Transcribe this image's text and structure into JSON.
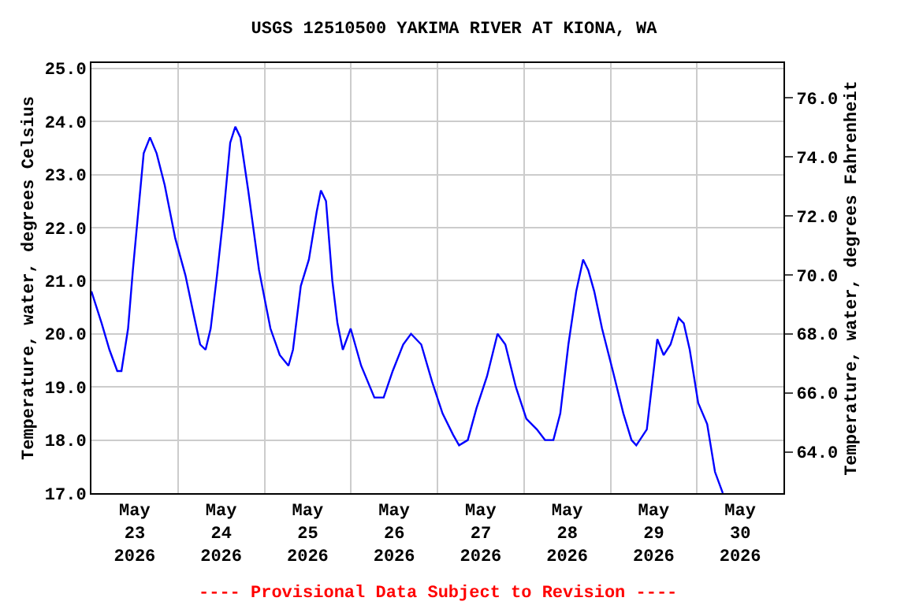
{
  "chart_data": {
    "type": "line",
    "title": "USGS 12510500 YAKIMA RIVER AT KIONA, WA",
    "ylabel": "Temperature, water, degrees Celsius",
    "y2label": "Temperature, water, degrees Fahrenheit",
    "annotations": [
      "---- Provisional Data Subject to Revision ----"
    ],
    "x": [
      "2026-05-23T00:00",
      "2026-05-23T02:50",
      "2026-05-23T05:00",
      "2026-05-23T07:10",
      "2026-05-23T08:20",
      "2026-05-23T10:10",
      "2026-05-23T11:30",
      "2026-05-23T13:00",
      "2026-05-23T14:30",
      "2026-05-23T16:15",
      "2026-05-23T18:05",
      "2026-05-23T20:20",
      "2026-05-23T23:15",
      "2026-05-24T02:05",
      "2026-05-24T04:15",
      "2026-05-24T06:10",
      "2026-05-24T07:40",
      "2026-05-24T09:05",
      "2026-05-24T10:50",
      "2026-05-24T12:35",
      "2026-05-24T14:30",
      "2026-05-24T15:55",
      "2026-05-24T17:20",
      "2026-05-24T19:30",
      "2026-05-24T22:30",
      "2026-05-25T01:40",
      "2026-05-25T04:15",
      "2026-05-25T06:40",
      "2026-05-25T07:55",
      "2026-05-25T10:05",
      "2026-05-25T12:20",
      "2026-05-25T14:30",
      "2026-05-25T15:40",
      "2026-05-25T17:05",
      "2026-05-25T18:50",
      "2026-05-25T20:15",
      "2026-05-25T21:45",
      "2026-05-25T23:55",
      "2026-05-26T02:50",
      "2026-05-26T06:30",
      "2026-05-26T09:05",
      "2026-05-26T11:35",
      "2026-05-26T14:30",
      "2026-05-26T16:40",
      "2026-05-26T19:30",
      "2026-05-26T22:30",
      "2026-05-27T01:25",
      "2026-05-27T04:20",
      "2026-05-27T06:00",
      "2026-05-27T08:25",
      "2026-05-27T10:50",
      "2026-05-27T13:45",
      "2026-05-27T16:40",
      "2026-05-27T18:50",
      "2026-05-27T21:45",
      "2026-05-28T00:40",
      "2026-05-28T03:35",
      "2026-05-28T05:50",
      "2026-05-28T08:10",
      "2026-05-28T10:05",
      "2026-05-28T12:20",
      "2026-05-28T14:30",
      "2026-05-28T16:25",
      "2026-05-28T17:50",
      "2026-05-28T19:30",
      "2026-05-28T21:40",
      "2026-05-29T00:40",
      "2026-05-29T03:35",
      "2026-05-29T05:50",
      "2026-05-29T07:10",
      "2026-05-29T10:05",
      "2026-05-29T13:00",
      "2026-05-29T14:45",
      "2026-05-29T16:40",
      "2026-05-29T18:55",
      "2026-05-29T20:20",
      "2026-05-29T22:00",
      "2026-05-30T00:20",
      "2026-05-30T02:50",
      "2026-05-30T05:00",
      "2026-05-30T07:10"
    ],
    "series": [
      {
        "color": "#0000ff",
        "values": [
          20.8,
          20.2,
          19.7,
          19.3,
          19.3,
          20.1,
          21.2,
          22.3,
          23.4,
          23.7,
          23.4,
          22.8,
          21.8,
          21.1,
          20.4,
          19.8,
          19.7,
          20.1,
          21.1,
          22.2,
          23.6,
          23.9,
          23.7,
          22.7,
          21.2,
          20.1,
          19.6,
          19.4,
          19.7,
          20.9,
          21.4,
          22.3,
          22.7,
          22.5,
          21.0,
          20.2,
          19.7,
          20.1,
          19.4,
          18.8,
          18.8,
          19.3,
          19.8,
          20.0,
          19.8,
          19.1,
          18.5,
          18.1,
          17.9,
          18.0,
          18.6,
          19.2,
          20.0,
          19.8,
          19.0,
          18.4,
          18.2,
          18.0,
          18.0,
          18.5,
          19.8,
          20.8,
          21.4,
          21.2,
          20.8,
          20.1,
          19.3,
          18.5,
          18.0,
          17.9,
          18.2,
          19.9,
          19.6,
          19.8,
          20.3,
          20.2,
          19.7,
          18.7,
          18.3,
          17.4,
          17.0
        ]
      }
    ],
    "xlim": [
      "2026-05-23T00:00",
      "2026-05-31T00:00"
    ],
    "xticks": [
      {
        "value": "2026-05-23T12:00",
        "label": "May\n23\n2026"
      },
      {
        "value": "2026-05-24T12:00",
        "label": "May\n24\n2026"
      },
      {
        "value": "2026-05-25T12:00",
        "label": "May\n25\n2026"
      },
      {
        "value": "2026-05-26T12:00",
        "label": "May\n26\n2026"
      },
      {
        "value": "2026-05-27T12:00",
        "label": "May\n27\n2026"
      },
      {
        "value": "2026-05-28T12:00",
        "label": "May\n28\n2026"
      },
      {
        "value": "2026-05-29T12:00",
        "label": "May\n29\n2026"
      },
      {
        "value": "2026-05-30T12:00",
        "label": "May\n30\n2026"
      },
      {
        "value": "2026-05-24T00:00",
        "label": null
      },
      {
        "value": "2026-05-25T00:00",
        "label": null
      },
      {
        "value": "2026-05-26T00:00",
        "label": null
      },
      {
        "value": "2026-05-27T00:00",
        "label": null
      },
      {
        "value": "2026-05-28T00:00",
        "label": null
      },
      {
        "value": "2026-05-29T00:00",
        "label": null
      },
      {
        "value": "2026-05-30T00:00",
        "label": null
      }
    ],
    "ylim": [
      17.0,
      25.1
    ],
    "yticks": [
      {
        "value": 17,
        "label": "17.0"
      },
      {
        "value": 18,
        "label": "18.0"
      },
      {
        "value": 19,
        "label": "19.0"
      },
      {
        "value": 20,
        "label": "20.0"
      },
      {
        "value": 21,
        "label": "21.0"
      },
      {
        "value": 22,
        "label": "22.0"
      },
      {
        "value": 23,
        "label": "23.0"
      },
      {
        "value": 24,
        "label": "24.0"
      },
      {
        "value": 25,
        "label": "25.0"
      }
    ],
    "y2lim": [
      62.6,
      77.18
    ],
    "y2ticks": [
      {
        "value": 64,
        "label": "64.0"
      },
      {
        "value": 66,
        "label": "66.0"
      },
      {
        "value": 68,
        "label": "68.0"
      },
      {
        "value": 70,
        "label": "70.0"
      },
      {
        "value": 72,
        "label": "72.0"
      },
      {
        "value": 74,
        "label": "74.0"
      },
      {
        "value": 76,
        "label": "76.0"
      }
    ],
    "grid": true,
    "marker": "none",
    "line_style": "solid"
  }
}
